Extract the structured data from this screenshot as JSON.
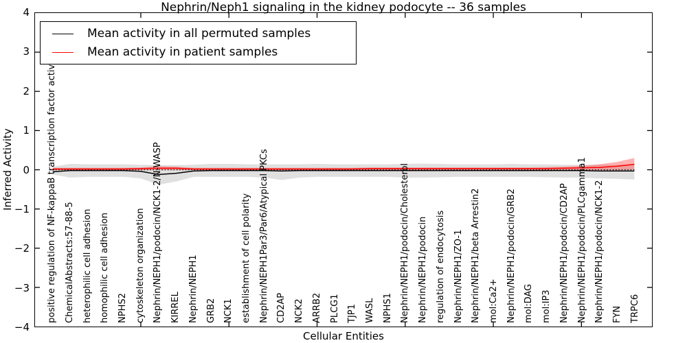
{
  "title": "Nephrin/Neph1 signaling in the kidney podocyte -- 36 samples",
  "legend": {
    "items": [
      {
        "label": "Mean activity in all permuted samples",
        "color": "#000000"
      },
      {
        "label": "Mean activity in patient samples",
        "color": "#ff0000"
      }
    ]
  },
  "axes": {
    "x_label": "Cellular Entities",
    "y_label": "Inferred Activity",
    "y_ticks": [
      "4",
      "3",
      "2",
      "1",
      "0",
      "−1",
      "−2",
      "−3",
      "−4"
    ],
    "y_tick_values": [
      4,
      3,
      2,
      1,
      0,
      -1,
      -2,
      -3,
      -4
    ]
  },
  "chart_data": {
    "type": "line",
    "title": "Nephrin/Neph1 signaling in the kidney podocyte -- 36 samples",
    "xlabel": "Cellular Entities",
    "ylabel": "Inferred Activity",
    "ylim": [
      -4,
      4
    ],
    "grid": false,
    "legend_position": "upper left",
    "zero_line_style": "dotted",
    "categories": [
      "positive regulation of NF-kappaB transcription factor activity",
      "ChemicalAbstracts:57-88-5",
      "heterophilic cell adhesion",
      "homophilic cell adhesion",
      "NPHS2",
      "cytoskeleton organization",
      "Nephrin/NEPH1/podocin/NCK1-2/N-WASP",
      "KIRREL",
      "Nephrin/NEPH1",
      "GRB2",
      "NCK1",
      "establishment of cell polarity",
      "Nephrin/NEPH1Par3/Par6/Atypical PKCs",
      "CD2AP",
      "NCK2",
      "ARRB2",
      "PLCG1",
      "TJP1",
      "WASL",
      "NPHS1",
      "Nephrin/NEPH1/podocin/Cholesterol",
      "Nephrin/NEPH1/podocin",
      "regulation of endocytosis",
      "Nephrin/NEPH1/ZO-1",
      "Nephrin/NEPH1/beta Arrestin2",
      "mol:Ca2+",
      "Nephrin/NEPH1/podocin/GRB2",
      "mol:DAG",
      "mol:IP3",
      "Nephrin/NEPH1/podocin/CD2AP",
      "Nephrin/NEPH1/podocin/PLCgamma1",
      "Nephrin/NEPH1/podocin/NCK1-2",
      "FYN",
      "TRPC6"
    ],
    "series": [
      {
        "name": "Mean activity in all permuted samples",
        "color": "#000000",
        "band_color": "rgba(0,0,0,0.12)",
        "values": [
          -0.05,
          -0.02,
          -0.02,
          -0.02,
          -0.02,
          -0.04,
          -0.12,
          -0.09,
          -0.03,
          -0.02,
          -0.02,
          -0.02,
          -0.02,
          -0.03,
          -0.02,
          -0.02,
          -0.02,
          -0.02,
          -0.02,
          -0.02,
          -0.02,
          -0.02,
          -0.02,
          -0.02,
          -0.02,
          -0.02,
          -0.02,
          -0.02,
          -0.02,
          -0.02,
          -0.02,
          -0.03,
          -0.03,
          -0.03
        ],
        "band_upper": [
          0.08,
          0.15,
          0.14,
          0.14,
          0.14,
          0.13,
          0.12,
          0.12,
          0.13,
          0.15,
          0.15,
          0.14,
          0.14,
          0.14,
          0.14,
          0.15,
          0.14,
          0.14,
          0.14,
          0.14,
          0.15,
          0.16,
          0.15,
          0.14,
          0.14,
          0.14,
          0.15,
          0.14,
          0.14,
          0.13,
          0.13,
          0.13,
          0.13,
          0.13
        ],
        "band_lower": [
          -0.12,
          -0.2,
          -0.18,
          -0.18,
          -0.18,
          -0.22,
          -0.38,
          -0.3,
          -0.18,
          -0.18,
          -0.18,
          -0.18,
          -0.2,
          -0.26,
          -0.2,
          -0.18,
          -0.18,
          -0.18,
          -0.18,
          -0.18,
          -0.2,
          -0.2,
          -0.19,
          -0.18,
          -0.18,
          -0.18,
          -0.18,
          -0.18,
          -0.19,
          -0.2,
          -0.2,
          -0.22,
          -0.23,
          -0.25
        ]
      },
      {
        "name": "Mean activity in patient samples",
        "color": "#ff0000",
        "band_color": "rgba(255,60,60,0.40)",
        "values": [
          0.02,
          0.02,
          0.02,
          0.02,
          0.02,
          0.03,
          0.04,
          0.04,
          0.02,
          0.02,
          0.02,
          0.02,
          0.02,
          0.02,
          0.02,
          0.02,
          0.02,
          0.02,
          0.03,
          0.03,
          0.03,
          0.03,
          0.03,
          0.03,
          0.03,
          0.03,
          0.03,
          0.03,
          0.03,
          0.04,
          0.05,
          0.06,
          0.09,
          0.14
        ],
        "band_upper": [
          0.05,
          0.05,
          0.05,
          0.05,
          0.05,
          0.06,
          0.09,
          0.08,
          0.05,
          0.05,
          0.05,
          0.05,
          0.05,
          0.05,
          0.05,
          0.05,
          0.05,
          0.05,
          0.06,
          0.06,
          0.06,
          0.06,
          0.06,
          0.06,
          0.06,
          0.06,
          0.06,
          0.06,
          0.07,
          0.08,
          0.1,
          0.14,
          0.2,
          0.3
        ],
        "band_lower": [
          -0.01,
          -0.01,
          -0.01,
          -0.01,
          -0.01,
          -0.01,
          -0.01,
          -0.01,
          -0.01,
          -0.01,
          -0.01,
          -0.01,
          -0.01,
          -0.01,
          -0.01,
          -0.01,
          -0.01,
          -0.01,
          -0.01,
          -0.01,
          -0.01,
          -0.01,
          -0.01,
          -0.01,
          -0.01,
          -0.01,
          -0.01,
          -0.01,
          -0.01,
          -0.01,
          -0.01,
          -0.01,
          -0.01,
          0.0
        ]
      }
    ]
  }
}
